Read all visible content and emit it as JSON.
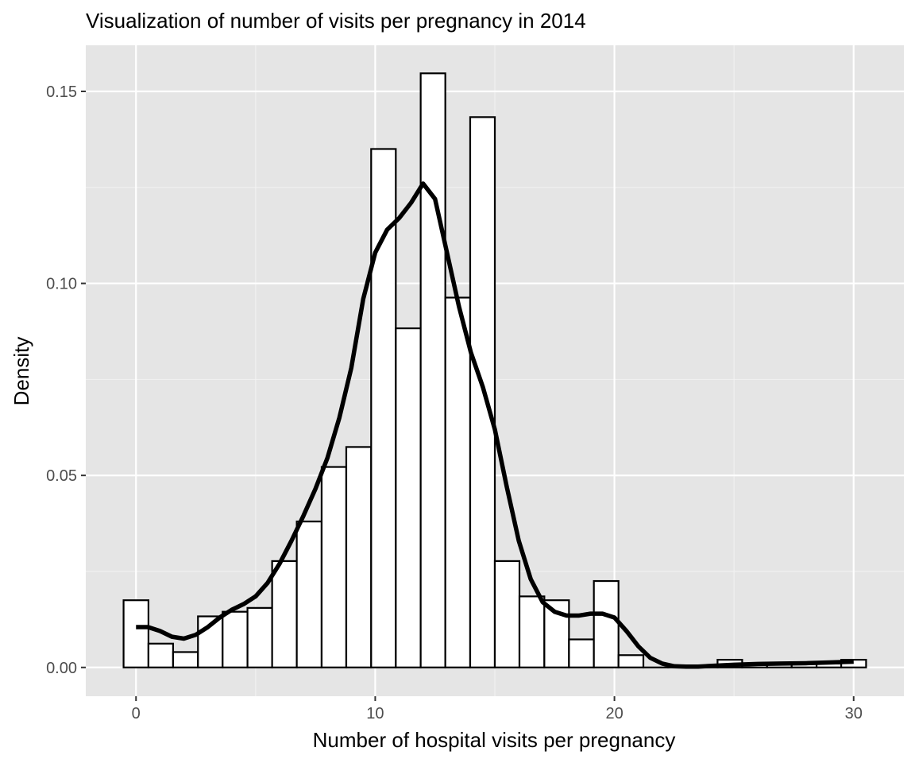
{
  "chart_data": {
    "type": "bar",
    "title": "Visualization of number of visits per pregnancy in 2014",
    "xlabel": "Number of hospital visits per pregnancy",
    "ylabel": "Density",
    "xlim": [
      -2.1,
      32.1
    ],
    "ylim": [
      -0.0075,
      0.162
    ],
    "x_ticks": [
      0,
      10,
      20,
      30
    ],
    "x_tick_labels": [
      "0",
      "10",
      "20",
      "30"
    ],
    "y_ticks": [
      0.0,
      0.05,
      0.1,
      0.15
    ],
    "y_tick_labels": [
      "0.00",
      "0.05",
      "0.10",
      "0.15"
    ],
    "grid": true,
    "background": "#e5e5e5",
    "bar_fill": "#ffffff",
    "bar_stroke": "#000000",
    "line_color": "#000000",
    "histogram": {
      "bins": [
        {
          "x0": -0.52,
          "x1": 0.52,
          "density": 0.0175
        },
        {
          "x0": 0.52,
          "x1": 1.55,
          "density": 0.0062
        },
        {
          "x0": 1.55,
          "x1": 2.59,
          "density": 0.004
        },
        {
          "x0": 2.59,
          "x1": 3.62,
          "density": 0.0133
        },
        {
          "x0": 3.62,
          "x1": 4.66,
          "density": 0.0145
        },
        {
          "x0": 4.66,
          "x1": 5.69,
          "density": 0.0155
        },
        {
          "x0": 5.69,
          "x1": 6.72,
          "density": 0.0277
        },
        {
          "x0": 6.72,
          "x1": 7.76,
          "density": 0.038
        },
        {
          "x0": 7.76,
          "x1": 8.79,
          "density": 0.0522
        },
        {
          "x0": 8.79,
          "x1": 9.83,
          "density": 0.0574
        },
        {
          "x0": 9.83,
          "x1": 10.86,
          "density": 0.135
        },
        {
          "x0": 10.86,
          "x1": 11.9,
          "density": 0.0883
        },
        {
          "x0": 11.9,
          "x1": 12.93,
          "density": 0.1547
        },
        {
          "x0": 12.93,
          "x1": 13.97,
          "density": 0.0963
        },
        {
          "x0": 13.97,
          "x1": 15.0,
          "density": 0.1433
        },
        {
          "x0": 15.0,
          "x1": 16.03,
          "density": 0.0277
        },
        {
          "x0": 16.03,
          "x1": 17.07,
          "density": 0.0185
        },
        {
          "x0": 17.07,
          "x1": 18.1,
          "density": 0.0175
        },
        {
          "x0": 18.1,
          "x1": 19.14,
          "density": 0.0073
        },
        {
          "x0": 19.14,
          "x1": 20.17,
          "density": 0.0225
        },
        {
          "x0": 20.17,
          "x1": 21.21,
          "density": 0.0032
        },
        {
          "x0": 21.21,
          "x1": 22.24,
          "density": 0.0
        },
        {
          "x0": 22.24,
          "x1": 23.28,
          "density": 0.0
        },
        {
          "x0": 23.28,
          "x1": 24.31,
          "density": 0.0
        },
        {
          "x0": 24.31,
          "x1": 25.34,
          "density": 0.002
        },
        {
          "x0": 25.34,
          "x1": 26.38,
          "density": 0.001
        },
        {
          "x0": 26.38,
          "x1": 27.41,
          "density": 0.001
        },
        {
          "x0": 27.41,
          "x1": 28.45,
          "density": 0.001
        },
        {
          "x0": 28.45,
          "x1": 29.48,
          "density": 0.001
        },
        {
          "x0": 29.48,
          "x1": 30.52,
          "density": 0.002
        }
      ]
    },
    "density_curve": {
      "x": [
        0,
        0.5,
        1,
        1.5,
        2,
        2.5,
        3,
        3.5,
        4,
        4.5,
        5,
        5.5,
        6,
        6.5,
        7,
        7.5,
        8,
        8.5,
        9,
        9.5,
        10,
        10.5,
        11,
        11.5,
        12,
        12.5,
        13,
        13.5,
        14,
        14.5,
        15,
        15.5,
        16,
        16.5,
        17,
        17.5,
        18,
        18.5,
        19,
        19.5,
        20,
        20.5,
        21,
        21.5,
        22,
        22.5,
        23,
        23.5,
        24,
        25,
        26,
        27,
        28,
        29,
        30
      ],
      "y": [
        0.0105,
        0.0105,
        0.0095,
        0.008,
        0.0075,
        0.0085,
        0.0105,
        0.013,
        0.015,
        0.0165,
        0.0185,
        0.022,
        0.027,
        0.033,
        0.0395,
        0.0465,
        0.0545,
        0.065,
        0.078,
        0.096,
        0.108,
        0.114,
        0.117,
        0.121,
        0.126,
        0.122,
        0.108,
        0.094,
        0.082,
        0.073,
        0.062,
        0.047,
        0.033,
        0.023,
        0.017,
        0.0145,
        0.0135,
        0.0135,
        0.014,
        0.014,
        0.013,
        0.0095,
        0.0055,
        0.0025,
        0.001,
        0.0003,
        0.0002,
        0.0002,
        0.0004,
        0.0007,
        0.0009,
        0.001,
        0.0011,
        0.0013,
        0.0015
      ]
    }
  }
}
